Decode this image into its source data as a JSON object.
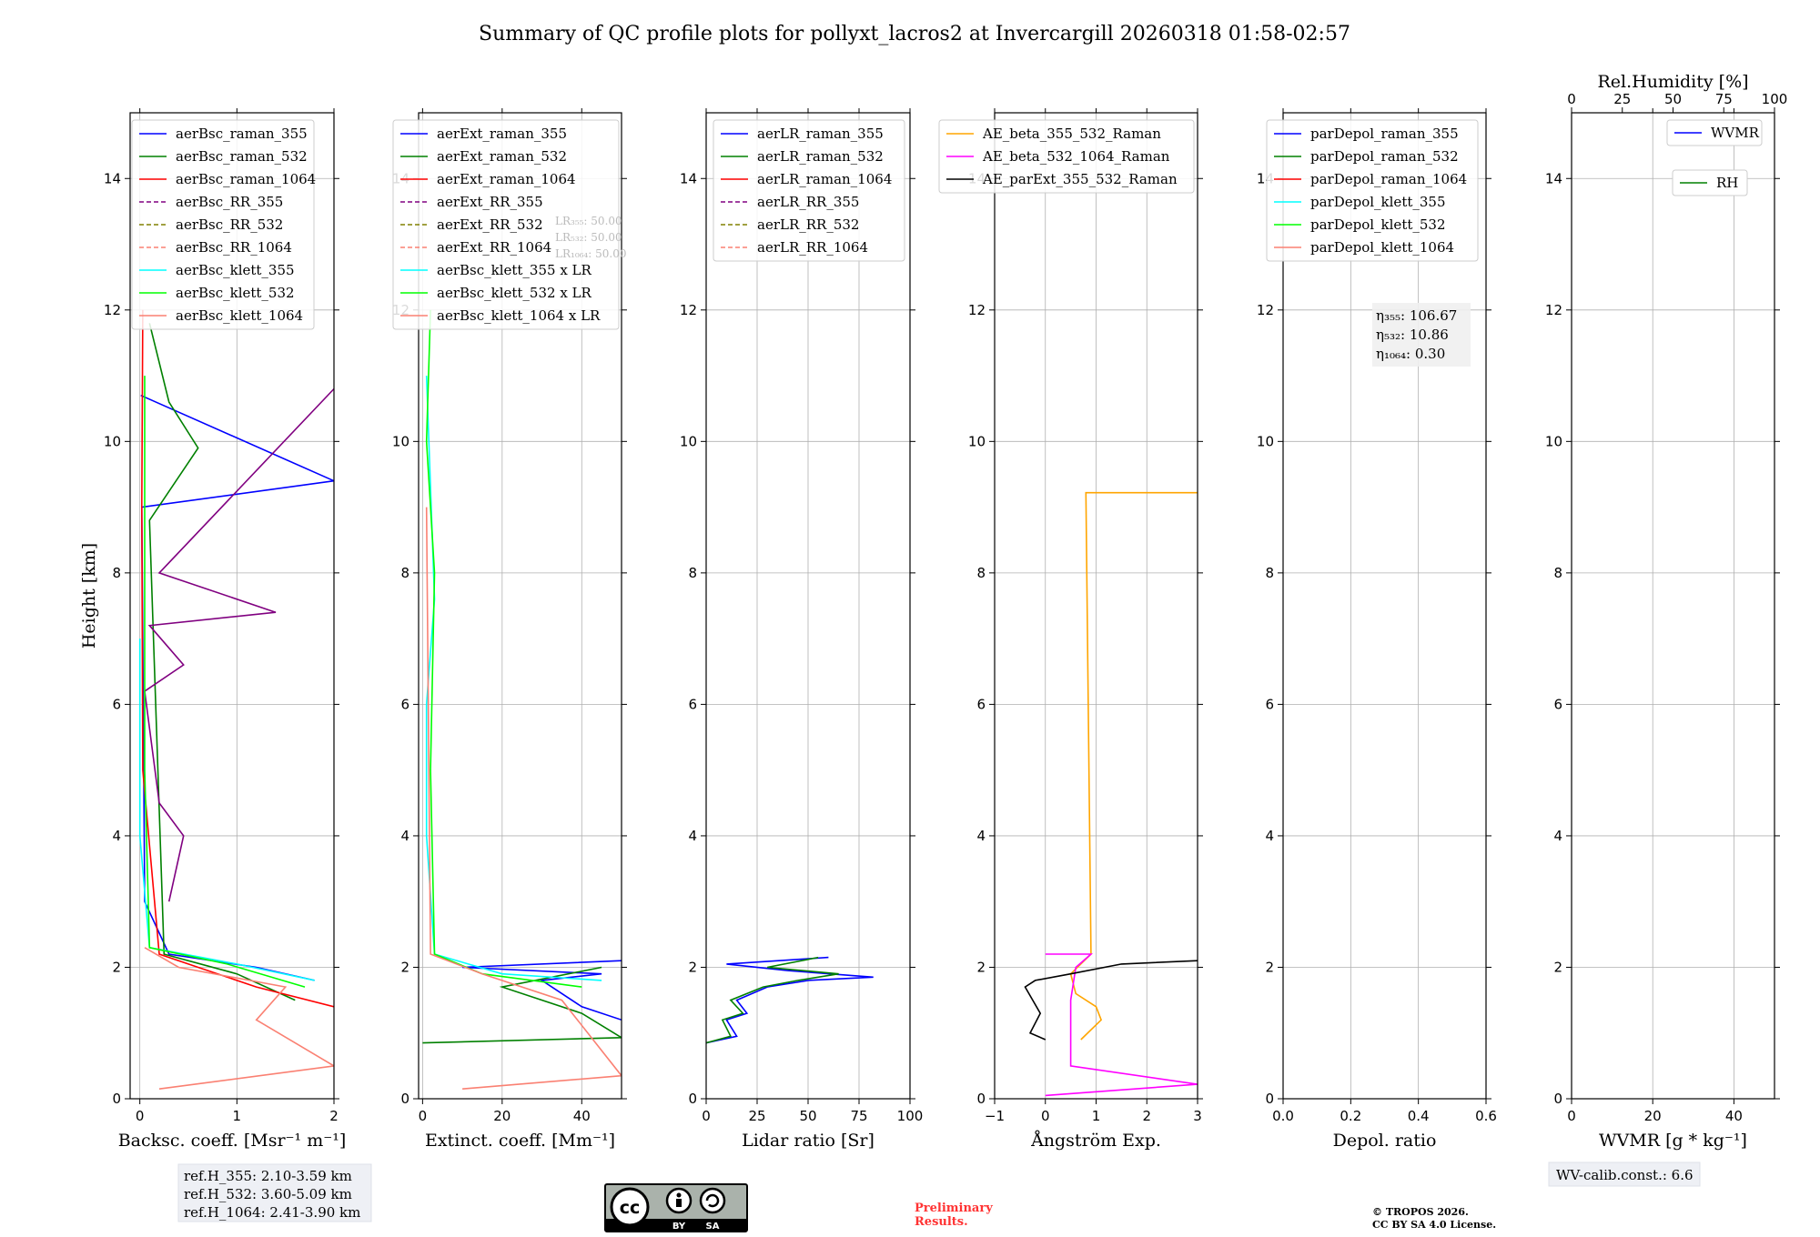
{
  "title": "Summary of QC profile plots for pollyxt_lacros2 at Invercargill 20260318 01:58-02:57",
  "ylabel": "Height [km]",
  "y_ticks": [
    "0",
    "2",
    "4",
    "6",
    "8",
    "10",
    "12",
    "14"
  ],
  "colors": {
    "blue": "#0000ff",
    "green": "#008000",
    "red": "#ff0000",
    "purple": "#800080",
    "olive": "#808000",
    "salmon": "#fa8072",
    "cyan": "#00ffff",
    "lime": "#00ff00",
    "orange": "#ffa500",
    "magenta": "#ff00ff",
    "black": "#000000"
  },
  "chart_data": [
    {
      "type": "line",
      "id": "backscatter",
      "xlabel": "Backsc. coeff. [Msr⁻¹ m⁻¹]",
      "xlim": [
        -0.1,
        2.0
      ],
      "ylim": [
        0,
        15
      ],
      "x_ticks": [
        "0",
        "1",
        "2"
      ],
      "x_tick_values": [
        0,
        1,
        2
      ],
      "legend": [
        {
          "label": "aerBsc_raman_355",
          "color": "blue",
          "dash": false
        },
        {
          "label": "aerBsc_raman_532",
          "color": "green",
          "dash": false
        },
        {
          "label": "aerBsc_raman_1064",
          "color": "red",
          "dash": false
        },
        {
          "label": "aerBsc_RR_355",
          "color": "purple",
          "dash": true
        },
        {
          "label": "aerBsc_RR_532",
          "color": "olive",
          "dash": true
        },
        {
          "label": "aerBsc_RR_1064",
          "color": "salmon",
          "dash": true
        },
        {
          "label": "aerBsc_klett_355",
          "color": "cyan",
          "dash": false
        },
        {
          "label": "aerBsc_klett_532",
          "color": "lime",
          "dash": false
        },
        {
          "label": "aerBsc_klett_1064",
          "color": "salmon",
          "dash": false
        }
      ],
      "series": [
        {
          "name": "aerBsc_raman_355",
          "color": "blue",
          "x": [
            1.8,
            1.2,
            0.3,
            0.05,
            0.02,
            2.0,
            0.01
          ],
          "y": [
            1.8,
            2.0,
            2.2,
            3.0,
            9.0,
            9.4,
            10.7
          ]
        },
        {
          "name": "aerBsc_raman_532",
          "color": "green",
          "x": [
            1.6,
            1.0,
            0.25,
            0.1,
            0.6,
            0.3,
            0.1
          ],
          "y": [
            1.5,
            1.9,
            2.2,
            8.8,
            9.9,
            10.6,
            11.8
          ]
        },
        {
          "name": "aerBsc_raman_1064",
          "color": "red",
          "x": [
            2.0,
            1.2,
            0.6,
            0.2,
            0.03,
            0.02,
            0.03
          ],
          "y": [
            1.4,
            1.7,
            2.0,
            2.2,
            5.0,
            9.0,
            12.0
          ]
        },
        {
          "name": "aerBsc_RR_355",
          "color": "purple",
          "x": [
            0.3,
            0.45,
            0.2,
            0.05,
            0.45,
            0.1,
            1.4,
            0.2,
            2.0
          ],
          "y": [
            3.0,
            4.0,
            4.5,
            6.2,
            6.6,
            7.2,
            7.4,
            8.0,
            10.8
          ]
        },
        {
          "name": "aerBsc_klett_355",
          "color": "cyan",
          "x": [
            1.8,
            1.0,
            0.1,
            0.0,
            0.0
          ],
          "y": [
            1.8,
            2.05,
            2.3,
            4.0,
            7.0
          ]
        },
        {
          "name": "aerBsc_klett_532",
          "color": "lime",
          "x": [
            1.7,
            0.9,
            0.1,
            0.05,
            0.05
          ],
          "y": [
            1.7,
            2.05,
            2.3,
            5.0,
            11.0
          ]
        },
        {
          "name": "aerBsc_klett_1064",
          "color": "salmon",
          "x": [
            0.2,
            2.0,
            1.2,
            1.5,
            0.4,
            0.05
          ],
          "y": [
            0.15,
            0.5,
            1.2,
            1.7,
            2.0,
            2.3
          ]
        }
      ],
      "annotation": [
        "ref.H_355: 2.10-3.59 km",
        "ref.H_532: 3.60-5.09 km",
        "ref.H_1064: 2.41-3.90 km"
      ]
    },
    {
      "type": "line",
      "id": "extinction",
      "xlabel": "Extinct. coeff. [Mm⁻¹]",
      "xlim": [
        -1,
        50
      ],
      "ylim": [
        0,
        15
      ],
      "x_ticks": [
        "0",
        "20",
        "40"
      ],
      "x_tick_values": [
        0,
        20,
        40
      ],
      "legend": [
        {
          "label": "aerExt_raman_355",
          "color": "blue",
          "dash": false
        },
        {
          "label": "aerExt_raman_532",
          "color": "green",
          "dash": false
        },
        {
          "label": "aerExt_raman_1064",
          "color": "red",
          "dash": false
        },
        {
          "label": "aerExt_RR_355",
          "color": "purple",
          "dash": true
        },
        {
          "label": "aerExt_RR_532",
          "color": "olive",
          "dash": true
        },
        {
          "label": "aerExt_RR_1064",
          "color": "salmon",
          "dash": true
        },
        {
          "label": "aerBsc_klett_355 x LR",
          "color": "cyan",
          "dash": false
        },
        {
          "label": "aerBsc_klett_532 x LR",
          "color": "lime",
          "dash": false
        },
        {
          "label": "aerBsc_klett_1064 x LR",
          "color": "salmon",
          "dash": false
        }
      ],
      "lr_labels": [
        "LR₃₅₅: 50.00",
        "LR₅₃₂: 50.00",
        "LR₁₀₆₄: 50.00"
      ],
      "series": [
        {
          "name": "aerExt_raman_355",
          "color": "blue",
          "x": [
            50,
            40,
            30,
            45,
            10,
            50
          ],
          "y": [
            1.2,
            1.4,
            1.8,
            1.9,
            2.0,
            2.1
          ]
        },
        {
          "name": "aerExt_raman_532",
          "color": "green",
          "x": [
            0,
            50,
            40,
            20,
            45
          ],
          "y": [
            0.85,
            0.93,
            1.3,
            1.7,
            2.0
          ]
        },
        {
          "name": "aerBsc_klett_355 x LR",
          "color": "cyan",
          "x": [
            45,
            20,
            3,
            1,
            1,
            3,
            1
          ],
          "y": [
            1.8,
            1.9,
            2.2,
            4.0,
            6.0,
            7.6,
            11.0
          ]
        },
        {
          "name": "aerBsc_klett_532 x LR",
          "color": "lime",
          "x": [
            40,
            15,
            3,
            2,
            3,
            1,
            2
          ],
          "y": [
            1.7,
            1.9,
            2.2,
            5.0,
            8.0,
            10.0,
            12.0
          ]
        },
        {
          "name": "aerBsc_klett_1064 x LR",
          "color": "salmon",
          "x": [
            10,
            50,
            35,
            15,
            2,
            1
          ],
          "y": [
            0.15,
            0.35,
            1.5,
            1.9,
            2.2,
            9.0
          ]
        }
      ]
    },
    {
      "type": "line",
      "id": "lidar_ratio",
      "xlabel": "Lidar ratio [Sr]",
      "xlim": [
        0,
        100
      ],
      "ylim": [
        0,
        15
      ],
      "x_ticks": [
        "0",
        "25",
        "50",
        "75",
        "100"
      ],
      "x_tick_values": [
        0,
        25,
        50,
        75,
        100
      ],
      "legend": [
        {
          "label": "aerLR_raman_355",
          "color": "blue",
          "dash": false
        },
        {
          "label": "aerLR_raman_532",
          "color": "green",
          "dash": false
        },
        {
          "label": "aerLR_raman_1064",
          "color": "red",
          "dash": false
        },
        {
          "label": "aerLR_RR_355",
          "color": "purple",
          "dash": true
        },
        {
          "label": "aerLR_RR_532",
          "color": "olive",
          "dash": true
        },
        {
          "label": "aerLR_RR_1064",
          "color": "salmon",
          "dash": true
        }
      ],
      "series": [
        {
          "name": "aerLR_raman_355",
          "color": "blue",
          "x": [
            0,
            15,
            10,
            20,
            15,
            30,
            50,
            82,
            40,
            10,
            60
          ],
          "y": [
            0.85,
            0.95,
            1.2,
            1.3,
            1.5,
            1.7,
            1.8,
            1.85,
            1.95,
            2.05,
            2.15
          ]
        },
        {
          "name": "aerLR_raman_532",
          "color": "green",
          "x": [
            0,
            12,
            8,
            18,
            12,
            28,
            45,
            65,
            30,
            55
          ],
          "y": [
            0.85,
            0.95,
            1.2,
            1.3,
            1.5,
            1.7,
            1.8,
            1.9,
            2.0,
            2.15
          ]
        }
      ]
    },
    {
      "type": "line",
      "id": "angstrom",
      "xlabel": "Ångström Exp.",
      "xlim": [
        -1,
        3
      ],
      "ylim": [
        0,
        15
      ],
      "x_ticks": [
        "−1",
        "0",
        "1",
        "2",
        "3"
      ],
      "x_tick_values": [
        -1,
        0,
        1,
        2,
        3
      ],
      "legend": [
        {
          "label": "AE_beta_355_532_Raman",
          "color": "orange",
          "dash": false
        },
        {
          "label": "AE_beta_532_1064_Raman",
          "color": "magenta",
          "dash": false
        },
        {
          "label": "AE_parExt_355_532_Raman",
          "color": "black",
          "dash": false
        }
      ],
      "series": [
        {
          "name": "AE_beta_355_532_Raman",
          "color": "orange",
          "x": [
            0.7,
            1.1,
            1.0,
            0.6,
            0.5,
            0.9,
            0.8,
            3.0
          ],
          "y": [
            0.9,
            1.2,
            1.4,
            1.6,
            1.9,
            2.2,
            9.22,
            9.22
          ]
        },
        {
          "name": "AE_beta_532_1064_Raman",
          "color": "magenta",
          "x": [
            0.0,
            3.0,
            0.5,
            0.5,
            0.6,
            0.9,
            0.0
          ],
          "y": [
            0.05,
            0.22,
            0.5,
            1.5,
            2.0,
            2.2,
            2.2
          ]
        },
        {
          "name": "AE_parExt_355_532_Raman",
          "color": "black",
          "x": [
            0.0,
            -0.3,
            -0.1,
            -0.4,
            -0.2,
            0.5,
            1.5,
            3.0
          ],
          "y": [
            0.9,
            1.0,
            1.3,
            1.7,
            1.8,
            1.9,
            2.05,
            2.1
          ]
        }
      ]
    },
    {
      "type": "line",
      "id": "depol",
      "xlabel": "Depol. ratio",
      "xlim": [
        0,
        0.6
      ],
      "ylim": [
        0,
        15
      ],
      "x_ticks": [
        "0.0",
        "0.2",
        "0.4",
        "0.6"
      ],
      "x_tick_values": [
        0,
        0.2,
        0.4,
        0.6
      ],
      "legend": [
        {
          "label": "parDepol_raman_355",
          "color": "blue",
          "dash": false
        },
        {
          "label": "parDepol_raman_532",
          "color": "green",
          "dash": false
        },
        {
          "label": "parDepol_raman_1064",
          "color": "red",
          "dash": false
        },
        {
          "label": "parDepol_klett_355",
          "color": "cyan",
          "dash": false
        },
        {
          "label": "parDepol_klett_532",
          "color": "lime",
          "dash": false
        },
        {
          "label": "parDepol_klett_1064",
          "color": "salmon",
          "dash": false
        }
      ],
      "eta_labels": [
        "η₃₅₅: 106.67",
        "η₅₃₂: 10.86",
        "η₁₀₆₄: 0.30"
      ]
    },
    {
      "type": "line",
      "id": "wvmr",
      "xlabel": "WVMR [g * kg⁻¹]",
      "top_label": "Rel.Humidity [%]",
      "xlim": [
        0,
        50
      ],
      "ylim": [
        0,
        15
      ],
      "x_ticks": [
        "0",
        "20",
        "40"
      ],
      "x_tick_values": [
        0,
        20,
        40
      ],
      "top_ticks": [
        "0",
        "25",
        "50",
        "75",
        "100"
      ],
      "top_tick_values": [
        0,
        25,
        50,
        75,
        100
      ],
      "legend": [
        {
          "label": "WVMR",
          "color": "blue",
          "dash": false
        },
        {
          "label": "RH",
          "color": "green",
          "dash": false
        }
      ],
      "annotation": "WV-calib.const.: 6.6"
    }
  ],
  "footer": {
    "cc_by": "BY",
    "cc_sa": "SA",
    "preliminary_1": "Preliminary",
    "preliminary_2": "Results.",
    "copyright_1": "© TROPOS 2026.",
    "copyright_2": "CC BY SA 4.0 License."
  }
}
